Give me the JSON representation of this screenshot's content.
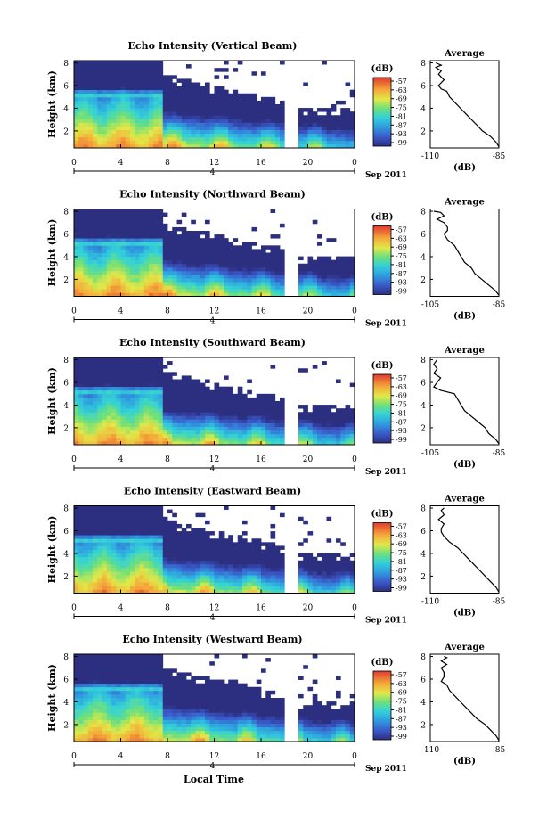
{
  "figure": {
    "bottom_xlabel": "Local Time"
  },
  "chart_data": [
    {
      "type": "heatmap",
      "title": "Echo Intensity (Vertical Beam)",
      "ylabel": "Height (km)",
      "yticks": [
        "2",
        "4",
        "6",
        "8"
      ],
      "ylim": [
        0.5,
        8.2
      ],
      "xticks": [
        "0",
        "4",
        "8",
        "12",
        "16",
        "20",
        "0"
      ],
      "xlim": [
        0,
        24
      ],
      "date_label": "4",
      "date_suffix": "Sep 2011",
      "colorbar": {
        "unit": "(dB)",
        "ticks": [
          "-57",
          "-63",
          "-69",
          "-75",
          "-81",
          "-87",
          "-93",
          "-99"
        ],
        "range": [
          -99,
          -57
        ]
      },
      "missing_data_hours": [
        [
          17.9,
          19.0
        ]
      ],
      "profile": {
        "title": "Average",
        "xlabel": "(dB)",
        "xticks": [
          "-110",
          "-85"
        ],
        "xlim": [
          -110,
          -85
        ],
        "yticks": [
          "2",
          "4",
          "6",
          "8"
        ],
        "ylim": [
          0.5,
          8.2
        ],
        "points": [
          [
            -85,
            0.6
          ],
          [
            -86,
            1.0
          ],
          [
            -88,
            1.5
          ],
          [
            -91,
            2.0
          ],
          [
            -93,
            2.5
          ],
          [
            -95,
            3.0
          ],
          [
            -97,
            3.5
          ],
          [
            -99,
            4.0
          ],
          [
            -101,
            4.5
          ],
          [
            -103,
            5.0
          ],
          [
            -104,
            5.5
          ],
          [
            -106,
            5.7
          ],
          [
            -107,
            6.0
          ],
          [
            -105,
            6.5
          ],
          [
            -107,
            7.0
          ],
          [
            -106,
            7.3
          ],
          [
            -108,
            7.6
          ],
          [
            -106,
            7.8
          ],
          [
            -108,
            8.0
          ]
        ]
      }
    },
    {
      "type": "heatmap",
      "title": "Echo Intensity (Northward Beam)",
      "ylabel": "Height (km)",
      "yticks": [
        "2",
        "4",
        "6",
        "8"
      ],
      "ylim": [
        0.5,
        8.2
      ],
      "xticks": [
        "0",
        "4",
        "8",
        "12",
        "16",
        "20",
        "0"
      ],
      "xlim": [
        0,
        24
      ],
      "date_label": "4",
      "date_suffix": "Sep 2011",
      "colorbar": {
        "unit": "(dB)",
        "ticks": [
          "-57",
          "-63",
          "-69",
          "-75",
          "-81",
          "-87",
          "-93",
          "-99"
        ],
        "range": [
          -99,
          -57
        ]
      },
      "missing_data_hours": [
        [
          17.9,
          19.0
        ]
      ],
      "profile": {
        "title": "Average",
        "xlabel": "(dB)",
        "xticks": [
          "-105",
          "-85"
        ],
        "xlim": [
          -105,
          -85
        ],
        "yticks": [
          "2",
          "4",
          "6",
          "8"
        ],
        "ylim": [
          0.5,
          8.2
        ],
        "points": [
          [
            -85,
            0.6
          ],
          [
            -86,
            1.0
          ],
          [
            -88,
            1.5
          ],
          [
            -90,
            2.0
          ],
          [
            -92,
            2.5
          ],
          [
            -93,
            3.0
          ],
          [
            -95,
            3.5
          ],
          [
            -96,
            4.0
          ],
          [
            -97,
            4.5
          ],
          [
            -98,
            5.0
          ],
          [
            -100,
            5.5
          ],
          [
            -101,
            6.0
          ],
          [
            -100,
            6.3
          ],
          [
            -100,
            6.6
          ],
          [
            -101,
            7.0
          ],
          [
            -103,
            7.3
          ],
          [
            -101,
            7.6
          ],
          [
            -102,
            7.9
          ],
          [
            -104,
            8.0
          ]
        ]
      }
    },
    {
      "type": "heatmap",
      "title": "Echo Intensity (Southward Beam)",
      "ylabel": "Height (km)",
      "yticks": [
        "2",
        "4",
        "6",
        "8"
      ],
      "ylim": [
        0.5,
        8.2
      ],
      "xticks": [
        "0",
        "4",
        "8",
        "12",
        "16",
        "20",
        "0"
      ],
      "xlim": [
        0,
        24
      ],
      "date_label": "4",
      "date_suffix": "Sep 2011",
      "colorbar": {
        "unit": "(dB)",
        "ticks": [
          "-57",
          "-63",
          "-69",
          "-75",
          "-81",
          "-87",
          "-93",
          "-99"
        ],
        "range": [
          -99,
          -57
        ]
      },
      "missing_data_hours": [
        [
          17.9,
          19.0
        ]
      ],
      "profile": {
        "title": "Average",
        "xlabel": "(dB)",
        "xticks": [
          "-105",
          "-85"
        ],
        "xlim": [
          -105,
          -85
        ],
        "yticks": [
          "2",
          "4",
          "6",
          "8"
        ],
        "ylim": [
          0.5,
          8.2
        ],
        "points": [
          [
            -85,
            0.6
          ],
          [
            -86,
            1.0
          ],
          [
            -88,
            1.5
          ],
          [
            -89,
            2.0
          ],
          [
            -91,
            2.5
          ],
          [
            -93,
            3.0
          ],
          [
            -95,
            3.5
          ],
          [
            -96,
            4.0
          ],
          [
            -97,
            4.5
          ],
          [
            -98,
            5.0
          ],
          [
            -102,
            5.3
          ],
          [
            -104,
            5.6
          ],
          [
            -103,
            6.0
          ],
          [
            -102,
            6.4
          ],
          [
            -104,
            6.8
          ],
          [
            -103,
            7.2
          ],
          [
            -104,
            7.6
          ],
          [
            -103,
            8.0
          ]
        ]
      }
    },
    {
      "type": "heatmap",
      "title": "Echo Intensity (Eastward Beam)",
      "ylabel": "Height (km)",
      "yticks": [
        "2",
        "4",
        "6",
        "8"
      ],
      "ylim": [
        0.5,
        8.2
      ],
      "xticks": [
        "0",
        "4",
        "8",
        "12",
        "16",
        "20",
        "0"
      ],
      "xlim": [
        0,
        24
      ],
      "date_label": "4",
      "date_suffix": "Sep 2011",
      "colorbar": {
        "unit": "(dB)",
        "ticks": [
          "-57",
          "-63",
          "-69",
          "-75",
          "-81",
          "-87",
          "-93",
          "-99"
        ],
        "range": [
          -99,
          -57
        ]
      },
      "missing_data_hours": [
        [
          17.9,
          19.0
        ]
      ],
      "profile": {
        "title": "Average",
        "xlabel": "(dB)",
        "xticks": [
          "-110",
          "-85"
        ],
        "xlim": [
          -110,
          -85
        ],
        "yticks": [
          "2",
          "4",
          "6",
          "8"
        ],
        "ylim": [
          0.5,
          8.2
        ],
        "points": [
          [
            -85,
            0.6
          ],
          [
            -86,
            1.0
          ],
          [
            -88,
            1.5
          ],
          [
            -90,
            2.0
          ],
          [
            -92,
            2.5
          ],
          [
            -94,
            3.0
          ],
          [
            -96,
            3.5
          ],
          [
            -98,
            4.0
          ],
          [
            -100,
            4.5
          ],
          [
            -103,
            5.0
          ],
          [
            -105,
            5.5
          ],
          [
            -106,
            5.9
          ],
          [
            -106,
            6.2
          ],
          [
            -105,
            6.6
          ],
          [
            -107,
            7.0
          ],
          [
            -105,
            7.4
          ],
          [
            -106,
            7.8
          ],
          [
            -105,
            8.0
          ]
        ]
      }
    },
    {
      "type": "heatmap",
      "title": "Echo Intensity (Westward Beam)",
      "ylabel": "Height (km)",
      "yticks": [
        "2",
        "4",
        "6",
        "8"
      ],
      "ylim": [
        0.5,
        8.2
      ],
      "xticks": [
        "0",
        "4",
        "8",
        "12",
        "16",
        "20",
        "0"
      ],
      "xlim": [
        0,
        24
      ],
      "date_label": "4",
      "date_suffix": "Sep 2011",
      "colorbar": {
        "unit": "(dB)",
        "ticks": [
          "-57",
          "-63",
          "-69",
          "-75",
          "-81",
          "-87",
          "-93",
          "-99"
        ],
        "range": [
          -99,
          -57
        ]
      },
      "missing_data_hours": [
        [
          17.9,
          19.0
        ]
      ],
      "profile": {
        "title": "Average",
        "xlabel": "(dB)",
        "xticks": [
          "-110",
          "-85"
        ],
        "xlim": [
          -110,
          -85
        ],
        "yticks": [
          "2",
          "4",
          "6",
          "8"
        ],
        "ylim": [
          0.5,
          8.2
        ],
        "points": [
          [
            -85,
            0.6
          ],
          [
            -86,
            1.0
          ],
          [
            -88,
            1.5
          ],
          [
            -90,
            2.0
          ],
          [
            -93,
            2.5
          ],
          [
            -95,
            3.0
          ],
          [
            -97,
            3.5
          ],
          [
            -99,
            4.0
          ],
          [
            -101,
            4.5
          ],
          [
            -103,
            5.0
          ],
          [
            -104,
            5.5
          ],
          [
            -106,
            5.8
          ],
          [
            -105,
            6.2
          ],
          [
            -105,
            6.6
          ],
          [
            -106,
            7.0
          ],
          [
            -104,
            7.3
          ],
          [
            -106,
            7.6
          ],
          [
            -104,
            7.9
          ],
          [
            -105,
            8.0
          ]
        ]
      }
    }
  ]
}
